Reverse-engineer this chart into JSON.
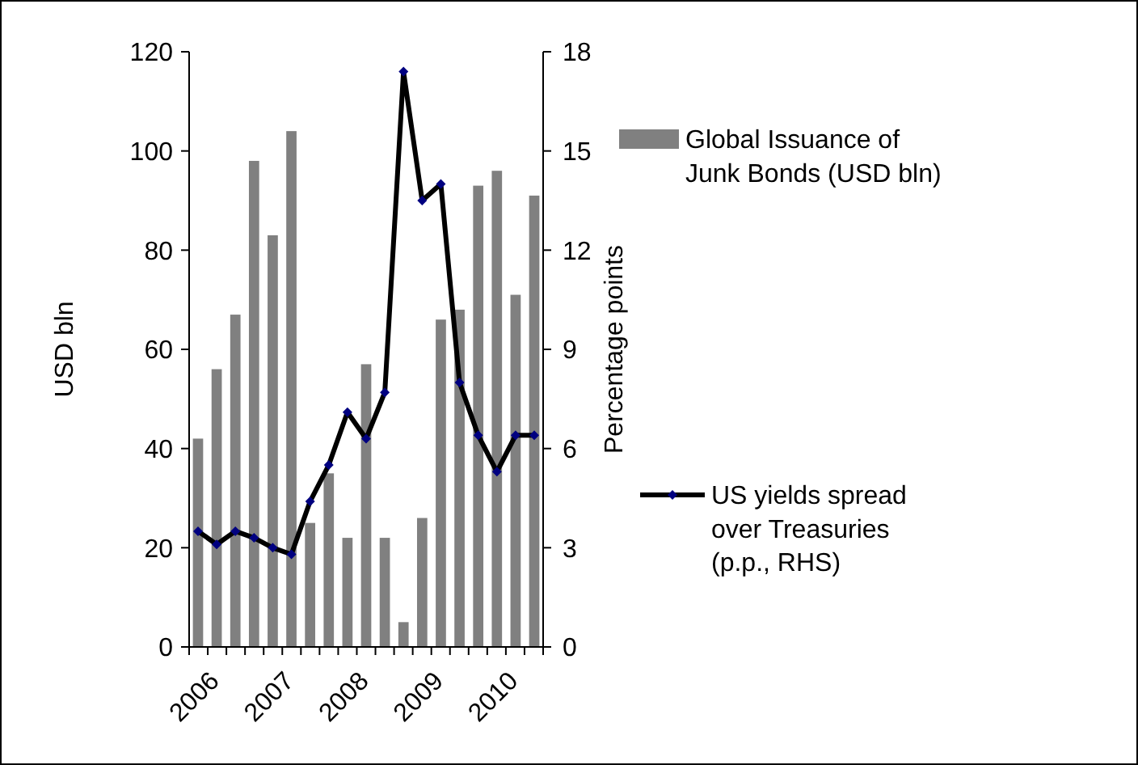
{
  "chart_data": {
    "type": "bar",
    "categories": [
      "2006",
      null,
      null,
      null,
      "2007",
      null,
      null,
      null,
      "2008",
      null,
      null,
      null,
      "2009",
      null,
      null,
      null,
      "2010",
      null,
      null
    ],
    "series": [
      {
        "name": "Global Issuance of Junk Bonds (USD bln)",
        "color": "#808080",
        "values": [
          42,
          56,
          67,
          98,
          83,
          104,
          25,
          35,
          22,
          57,
          22,
          5,
          26,
          66,
          68,
          93,
          96,
          71,
          91
        ]
      },
      {
        "name": "US yields spread over Treasuries (p.p., RHS)",
        "type": "line",
        "axis": "y2",
        "color": "#000000",
        "marker": "diamond",
        "values": [
          3.5,
          3.1,
          3.5,
          3.3,
          3.0,
          2.8,
          4.4,
          5.5,
          7.1,
          6.3,
          7.7,
          17.4,
          13.5,
          14.0,
          8.0,
          6.4,
          5.3,
          6.4,
          6.4
        ]
      }
    ],
    "ylabel": "USD bln",
    "y2label": "Percentage points",
    "ylim": [
      0,
      120
    ],
    "yticks": [
      0,
      20,
      40,
      60,
      80,
      100,
      120
    ],
    "y2lim": [
      0,
      18
    ],
    "y2ticks": [
      0,
      3,
      6,
      9,
      12,
      15,
      18
    ],
    "grid": false,
    "legend": "right"
  }
}
